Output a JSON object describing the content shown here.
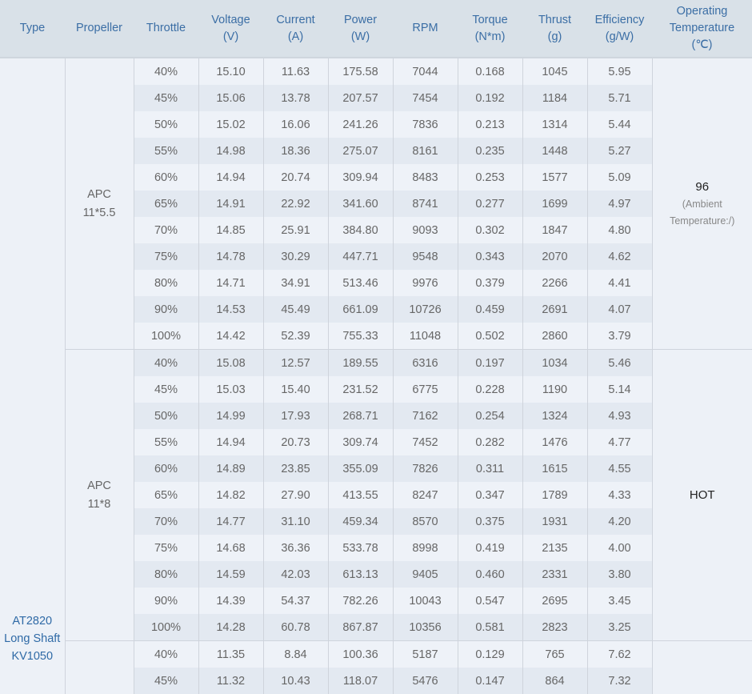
{
  "headers": [
    "Type",
    "Propeller",
    "Throttle",
    "Voltage\n(V)",
    "Current\n(A)",
    "Power\n(W)",
    "RPM",
    "Torque\n(N*m)",
    "Thrust\n(g)",
    "Efficiency\n(g/W)",
    "Operating\nTemperature\n(℃)"
  ],
  "type_label": [
    "AT2820",
    "Long Shaft",
    "KV1050"
  ],
  "colors": {
    "header_bg": "#d9e1e8",
    "header_text": "#3b6ea5",
    "type_text": "#2f6aa6",
    "row_light": "#eef2f8",
    "row_dark": "#e3e9f1"
  },
  "groups": [
    {
      "propeller": [
        "APC",
        "11*5.5"
      ],
      "temperature": {
        "value": "96",
        "note": [
          "(Ambient",
          "Temperature:/)"
        ]
      },
      "rows": [
        [
          "40%",
          "15.10",
          "11.63",
          "175.58",
          "7044",
          "0.168",
          "1045",
          "5.95"
        ],
        [
          "45%",
          "15.06",
          "13.78",
          "207.57",
          "7454",
          "0.192",
          "1184",
          "5.71"
        ],
        [
          "50%",
          "15.02",
          "16.06",
          "241.26",
          "7836",
          "0.213",
          "1314",
          "5.44"
        ],
        [
          "55%",
          "14.98",
          "18.36",
          "275.07",
          "8161",
          "0.235",
          "1448",
          "5.27"
        ],
        [
          "60%",
          "14.94",
          "20.74",
          "309.94",
          "8483",
          "0.253",
          "1577",
          "5.09"
        ],
        [
          "65%",
          "14.91",
          "22.92",
          "341.60",
          "8741",
          "0.277",
          "1699",
          "4.97"
        ],
        [
          "70%",
          "14.85",
          "25.91",
          "384.80",
          "9093",
          "0.302",
          "1847",
          "4.80"
        ],
        [
          "75%",
          "14.78",
          "30.29",
          "447.71",
          "9548",
          "0.343",
          "2070",
          "4.62"
        ],
        [
          "80%",
          "14.71",
          "34.91",
          "513.46",
          "9976",
          "0.379",
          "2266",
          "4.41"
        ],
        [
          "90%",
          "14.53",
          "45.49",
          "661.09",
          "10726",
          "0.459",
          "2691",
          "4.07"
        ],
        [
          "100%",
          "14.42",
          "52.39",
          "755.33",
          "11048",
          "0.502",
          "2860",
          "3.79"
        ]
      ]
    },
    {
      "propeller": [
        "APC",
        "11*8"
      ],
      "temperature": {
        "value": "HOT",
        "note": []
      },
      "rows": [
        [
          "40%",
          "15.08",
          "12.57",
          "189.55",
          "6316",
          "0.197",
          "1034",
          "5.46"
        ],
        [
          "45%",
          "15.03",
          "15.40",
          "231.52",
          "6775",
          "0.228",
          "1190",
          "5.14"
        ],
        [
          "50%",
          "14.99",
          "17.93",
          "268.71",
          "7162",
          "0.254",
          "1324",
          "4.93"
        ],
        [
          "55%",
          "14.94",
          "20.73",
          "309.74",
          "7452",
          "0.282",
          "1476",
          "4.77"
        ],
        [
          "60%",
          "14.89",
          "23.85",
          "355.09",
          "7826",
          "0.311",
          "1615",
          "4.55"
        ],
        [
          "65%",
          "14.82",
          "27.90",
          "413.55",
          "8247",
          "0.347",
          "1789",
          "4.33"
        ],
        [
          "70%",
          "14.77",
          "31.10",
          "459.34",
          "8570",
          "0.375",
          "1931",
          "4.20"
        ],
        [
          "75%",
          "14.68",
          "36.36",
          "533.78",
          "8998",
          "0.419",
          "2135",
          "4.00"
        ],
        [
          "80%",
          "14.59",
          "42.03",
          "613.13",
          "9405",
          "0.460",
          "2331",
          "3.80"
        ],
        [
          "90%",
          "14.39",
          "54.37",
          "782.26",
          "10043",
          "0.547",
          "2695",
          "3.45"
        ],
        [
          "100%",
          "14.28",
          "60.78",
          "867.87",
          "10356",
          "0.581",
          "2823",
          "3.25"
        ]
      ]
    },
    {
      "propeller": [],
      "temperature": {
        "value": "",
        "note": []
      },
      "rows": [
        [
          "40%",
          "11.35",
          "8.84",
          "100.36",
          "5187",
          "0.129",
          "765",
          "7.62"
        ],
        [
          "45%",
          "11.32",
          "10.43",
          "118.07",
          "5476",
          "0.147",
          "864",
          "7.32"
        ]
      ]
    }
  ]
}
